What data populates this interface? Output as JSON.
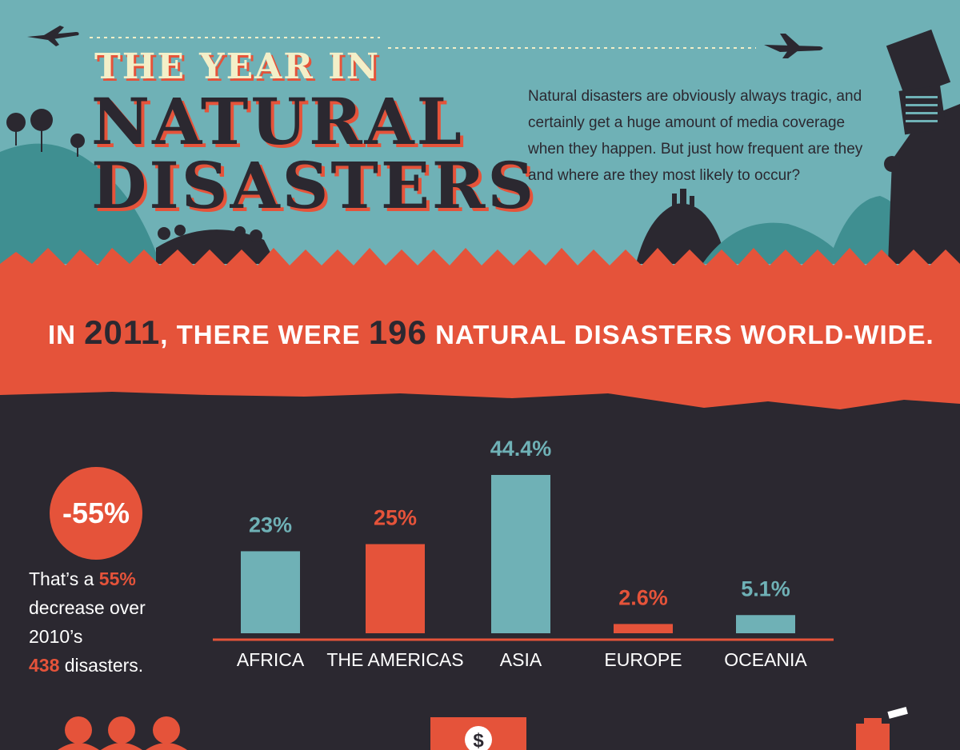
{
  "header": {
    "title_line1": "THE YEAR IN",
    "title_line2": "NATURAL",
    "title_line3": "DISASTERS",
    "intro": "Natural disasters are obviously always tragic, and certainly get a huge amount of media coverage when they happen. But just how frequent are they and where are they most likely to occur?"
  },
  "headline": {
    "prefix": "IN",
    "year": "2011",
    "middle": ", THERE WERE",
    "count": "196",
    "suffix": "NATURAL DISASTERS WORLD-WIDE."
  },
  "change": {
    "badge": "-55%",
    "text_1": "That’s a",
    "highlight_pct": "55%",
    "text_2": "decrease over",
    "text_3": "2010’s",
    "highlight_count": "438",
    "text_4": "disasters."
  },
  "colors": {
    "teal": "#6fb1b6",
    "red": "#e5533a",
    "dark": "#2b2830",
    "cream": "#f3efc8"
  },
  "chart_data": {
    "type": "bar",
    "categories": [
      "AFRICA",
      "THE AMERICAS",
      "ASIA",
      "EUROPE",
      "OCEANIA"
    ],
    "values": [
      23,
      25,
      44.4,
      2.6,
      5.1
    ],
    "value_labels": [
      "23%",
      "25%",
      "44.4%",
      "2.6%",
      "5.1%"
    ],
    "bar_colors": [
      "#6fb1b6",
      "#e5533a",
      "#6fb1b6",
      "#e5533a",
      "#6fb1b6"
    ],
    "ylim": [
      0,
      44.4
    ],
    "grid": false
  },
  "footer_icons": [
    "people-icon",
    "dollar-icon",
    "building-icon"
  ]
}
